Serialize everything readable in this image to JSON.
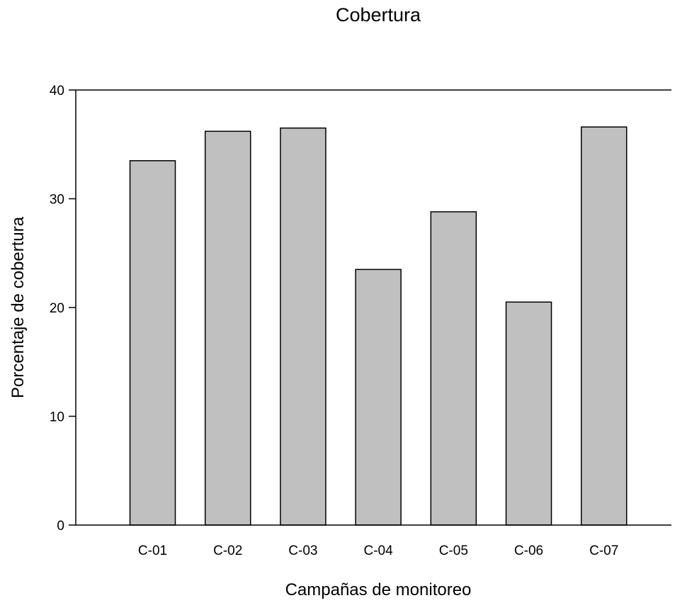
{
  "chart_data": {
    "type": "bar",
    "title": "Cobertura",
    "xlabel": "Campañas de monitoreo",
    "ylabel": "Porcentaje de cobertura",
    "categories": [
      "C-01",
      "C-02",
      "C-03",
      "C-04",
      "C-05",
      "C-06",
      "C-07"
    ],
    "values": [
      33.5,
      36.2,
      36.5,
      23.5,
      28.8,
      20.5,
      36.6
    ],
    "ylim": [
      0,
      40
    ],
    "yticks": [
      0,
      10,
      20,
      30,
      40
    ],
    "grid": false,
    "legend": "none",
    "bar_color": "#c0c0c0",
    "edge_color": "#000000"
  }
}
